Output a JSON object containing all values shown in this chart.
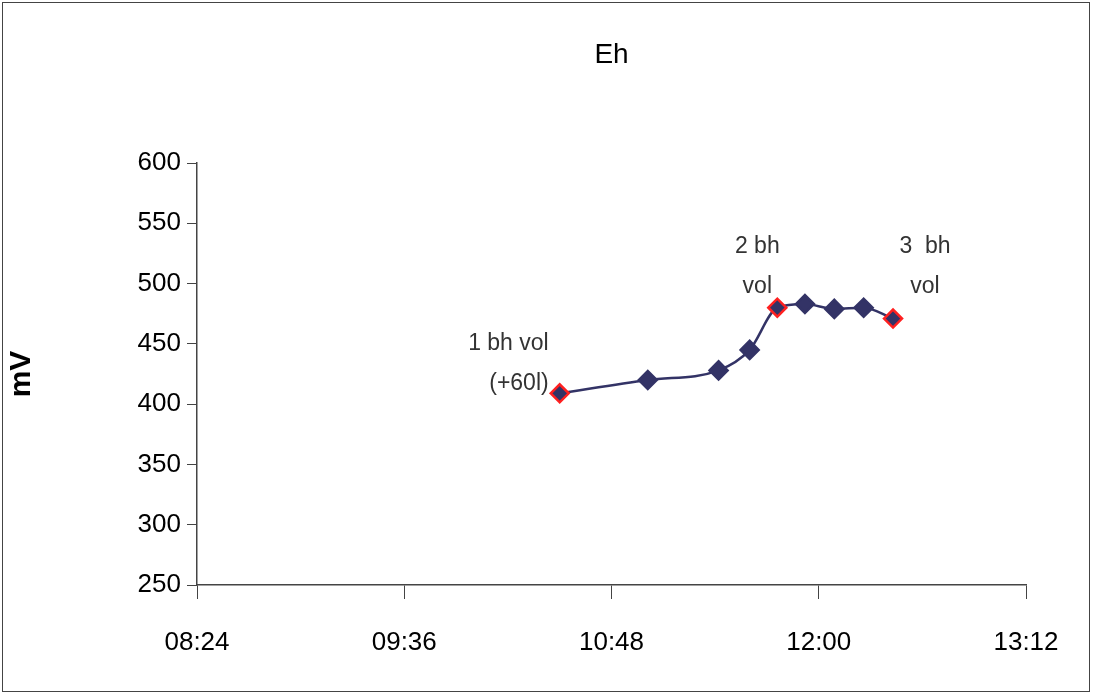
{
  "chart_data": {
    "type": "line",
    "title": "Eh",
    "ylabel": "mV",
    "x": [
      10.5,
      11.01,
      11.42,
      11.6,
      11.76,
      11.92,
      12.09,
      12.26,
      12.43
    ],
    "series": [
      {
        "color": "#333366",
        "values": [
          409,
          420,
          428,
          445,
          480,
          483,
          479,
          480,
          471
        ]
      }
    ],
    "xlim": [
      8.4,
      13.2
    ],
    "xticks": [
      {
        "value": 8.4,
        "label": "08:24"
      },
      {
        "value": 9.6,
        "label": "09:36"
      },
      {
        "value": 10.8,
        "label": "10:48"
      },
      {
        "value": 12.0,
        "label": "12:00"
      },
      {
        "value": 13.2,
        "label": "13:12"
      }
    ],
    "ylim": [
      250,
      600
    ],
    "yticks": [
      250,
      300,
      350,
      400,
      450,
      500,
      550,
      600
    ],
    "grid": false,
    "legend": false,
    "marker": "diamond",
    "line_style": "solid",
    "annotations": [
      {
        "text": "1 bh vol\n(+60l)",
        "x": 10.5,
        "y": 409
      },
      {
        "text": "2 bh\nvol",
        "x": 11.76,
        "y": 480
      },
      {
        "text": "3  bh\nvol",
        "x": 12.43,
        "y": 471
      }
    ]
  }
}
